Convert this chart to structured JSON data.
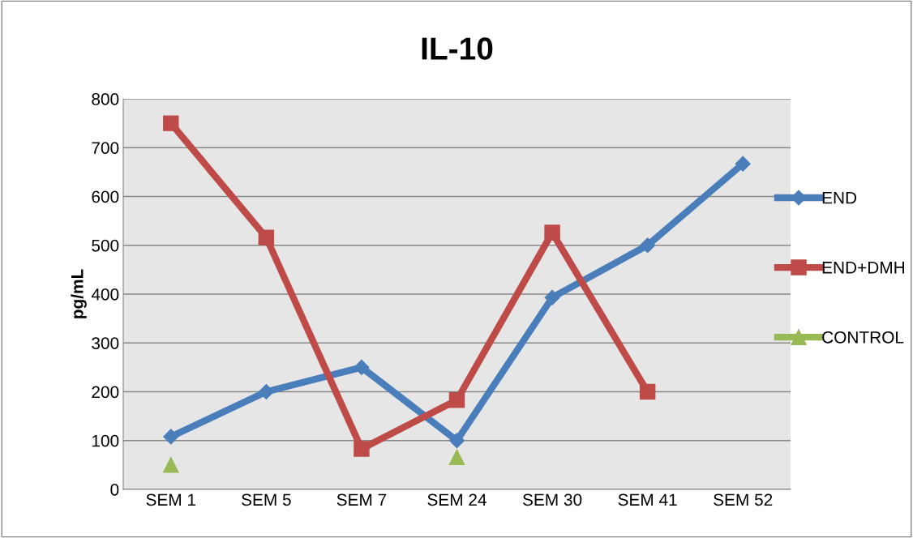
{
  "chart_data": {
    "type": "line",
    "title": "IL-10",
    "ylabel": "pg/mL",
    "categories": [
      "SEM 1",
      "SEM 5",
      "SEM 7",
      "SEM 24",
      "SEM 30",
      "SEM 41",
      "SEM 52"
    ],
    "series": [
      {
        "name": "END",
        "color": "#4a7ebb",
        "marker": "diamond",
        "values": [
          108,
          200,
          250,
          100,
          393,
          500,
          667
        ]
      },
      {
        "name": "END+DMH",
        "color": "#be4b48",
        "marker": "square",
        "values": [
          750,
          516,
          83,
          183,
          526,
          200,
          null
        ]
      },
      {
        "name": "CONTROL",
        "color": "#98b954",
        "marker": "triangle",
        "values": [
          50,
          null,
          null,
          66,
          null,
          null,
          null
        ]
      }
    ],
    "ylim": [
      0,
      800
    ],
    "yticks": [
      0,
      100,
      200,
      300,
      400,
      500,
      600,
      700,
      800
    ],
    "grid": "y",
    "legend": "right"
  }
}
